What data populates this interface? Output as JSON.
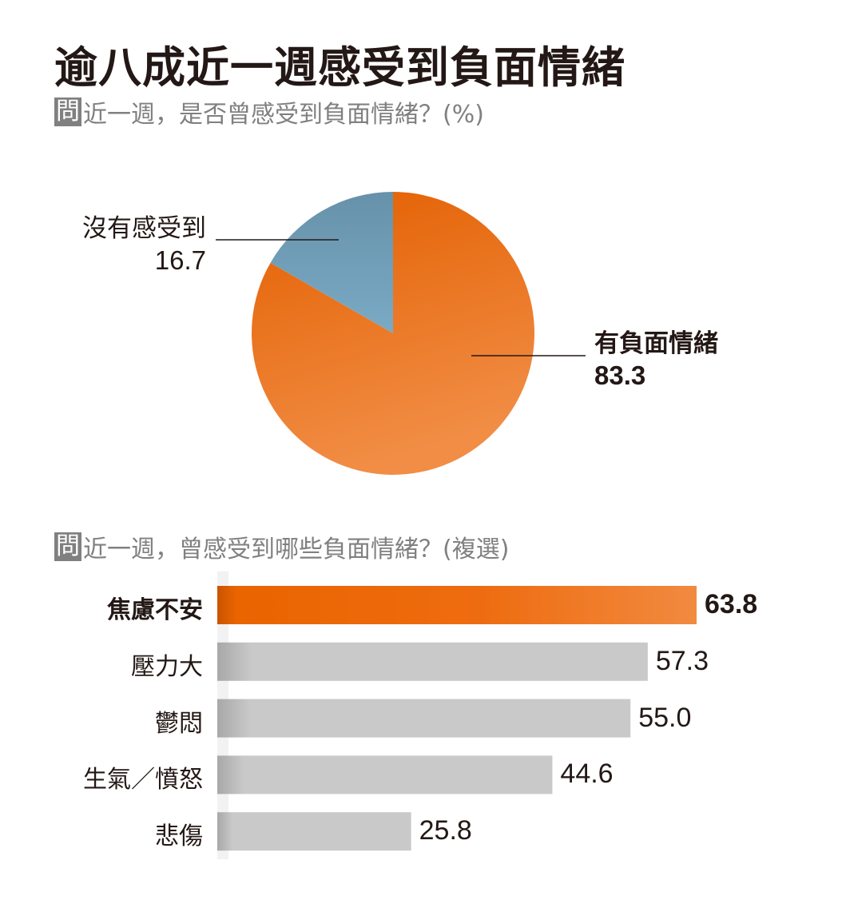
{
  "title": "逾八成近一週感受到負面情緒",
  "q_tag": "問",
  "chart_data": [
    {
      "type": "pie",
      "title": "近一週，是否曾感受到負面情緒？(%)",
      "slices": [
        {
          "label": "有負面情緒",
          "value": 83.3,
          "display": "83.3",
          "color": "#ec6a1c"
        },
        {
          "label": "沒有感受到",
          "value": 16.7,
          "display": "16.7",
          "color": "#6f9db8"
        }
      ]
    },
    {
      "type": "bar",
      "orientation": "horizontal",
      "title": "近一週，曾感受到哪些負面情緒？(複選)",
      "categories": [
        "焦慮不安",
        "壓力大",
        "鬱悶",
        "生氣／憤怒",
        "悲傷"
      ],
      "values": [
        63.8,
        57.3,
        55.0,
        44.6,
        25.8
      ],
      "display": [
        "63.8",
        "57.3",
        "55.0",
        "44.6",
        "25.8"
      ],
      "highlight_color": "#ec6a1c",
      "bar_color": "#c9c9c9"
    }
  ]
}
